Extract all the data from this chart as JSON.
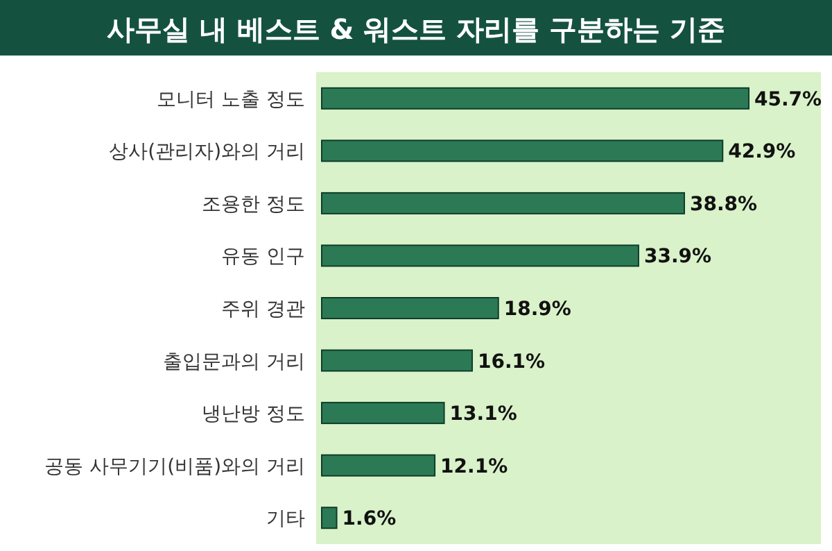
{
  "chart_data": {
    "type": "bar",
    "orientation": "horizontal",
    "title": "사무실 내 베스트 & 워스트 자리를 구분하는 기준",
    "categories": [
      "모니터 노출 정도",
      "상사(관리자)와의 거리",
      "조용한 정도",
      "유동 인구",
      "주위 경관",
      "출입문과의 거리",
      "냉난방 정도",
      "공동 사무기기(비품)와의 거리",
      "기타"
    ],
    "values": [
      45.7,
      42.9,
      38.8,
      33.9,
      18.9,
      16.1,
      13.1,
      12.1,
      1.6
    ],
    "value_labels": [
      "45.7%",
      "42.9%",
      "38.8%",
      "33.9%",
      "18.9%",
      "16.1%",
      "13.1%",
      "12.1%",
      "1.6%"
    ],
    "color": "#2b7a55"
  }
}
